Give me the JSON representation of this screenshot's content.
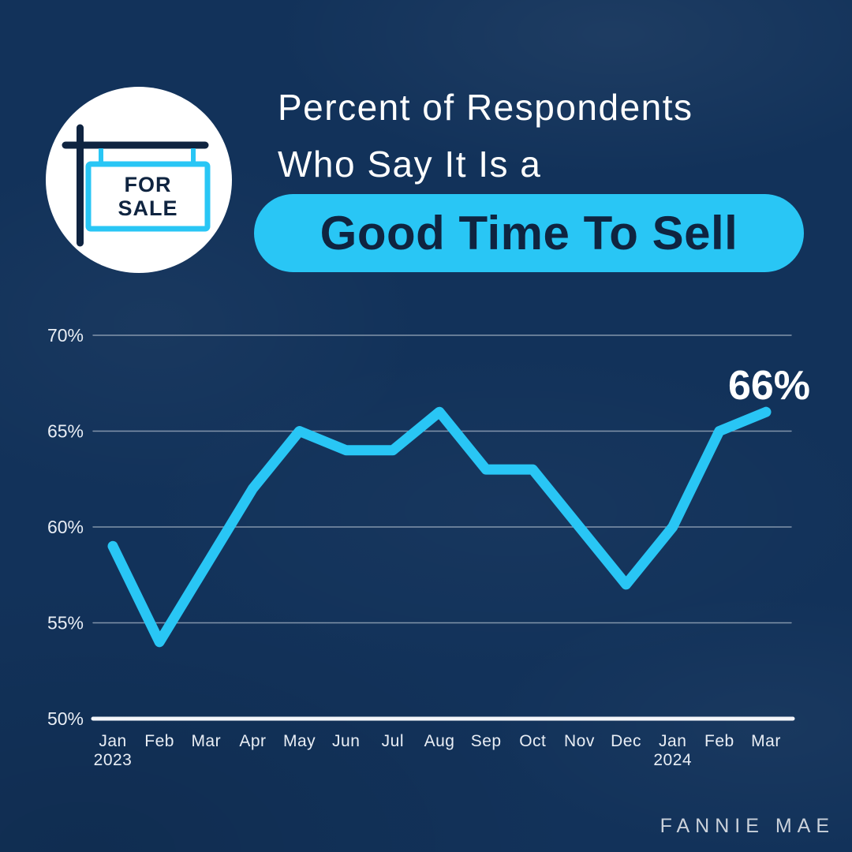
{
  "colors": {
    "background": "#12325A",
    "accent_cyan": "#29C6F5",
    "dark_navy": "#0F2440",
    "text_white": "#FFFFFF",
    "grid_line": "#C7D0DC",
    "axis_line": "#F4F6FA",
    "brand_text": "#CBD2DB"
  },
  "header": {
    "title_line1": "Percent of Respondents",
    "title_line2": "Who Say It Is a",
    "highlight_text": "Good Time To Sell",
    "icon": {
      "sign_line1": "FOR",
      "sign_line2": "SALE"
    }
  },
  "chart_data": {
    "type": "line",
    "title": "Percent of Respondents Who Say It Is a Good Time To Sell",
    "categories": [
      "Jan",
      "Feb",
      "Mar",
      "Apr",
      "May",
      "Jun",
      "Jul",
      "Aug",
      "Sep",
      "Oct",
      "Nov",
      "Dec",
      "Jan",
      "Feb",
      "Mar"
    ],
    "year_labels": [
      {
        "index": 0,
        "text": "2023"
      },
      {
        "index": 12,
        "text": "2024"
      }
    ],
    "values": [
      59,
      54,
      58,
      62,
      65,
      64,
      64,
      66,
      63,
      63,
      60,
      57,
      60,
      65,
      66
    ],
    "ylim": [
      50,
      70
    ],
    "yticks": [
      {
        "value": 50,
        "label": "50%"
      },
      {
        "value": 55,
        "label": "55%"
      },
      {
        "value": 60,
        "label": "60%"
      },
      {
        "value": 65,
        "label": "65%"
      },
      {
        "value": 70,
        "label": "70%"
      }
    ],
    "grid": true,
    "legend": false,
    "line_color": "#29C6F5",
    "line_width": 13,
    "annotation": {
      "text": "66%",
      "point_index": 14
    }
  },
  "footer": {
    "brand": "FANNIE MAE"
  }
}
